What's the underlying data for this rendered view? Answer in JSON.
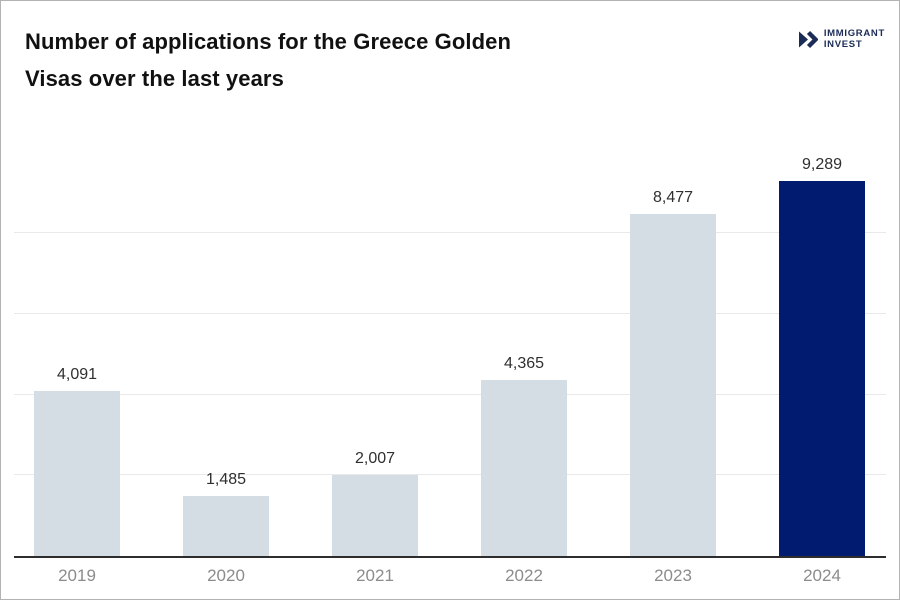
{
  "header": {
    "title_line1": "Number of applications for the Greece Golden",
    "title_line2": "Visas over the last years",
    "logo": {
      "line1": "IMMIGRANT",
      "line2": "INVEST",
      "icon": "double-chevron-right-icon",
      "color": "#1b2c56"
    }
  },
  "chart_data": {
    "type": "bar",
    "title": "Number of applications for the Greece Golden Visas over the last years",
    "categories": [
      "2019",
      "2020",
      "2021",
      "2022",
      "2023",
      "2024"
    ],
    "values": [
      4091,
      1485,
      2007,
      4365,
      8477,
      9289
    ],
    "value_labels": [
      "4,091",
      "1,485",
      "2,007",
      "4,365",
      "8,477",
      "9,289"
    ],
    "xlabel": "",
    "ylabel": "",
    "ylim": [
      0,
      10000
    ],
    "gridline_values": [
      2000,
      4000,
      6000,
      8000
    ],
    "grid": true,
    "legend": false,
    "bar_color_default": "#d4dde3",
    "bar_color_highlight": "#001b70",
    "highlight_index": 5,
    "colors": {
      "title_text": "#111111",
      "value_label_text": "#2f2f2f",
      "axis_label_text": "#8c8c8c",
      "gridline": "#e9e9e9",
      "axis_line": "#2d2d2d",
      "background": "#ffffff"
    }
  }
}
